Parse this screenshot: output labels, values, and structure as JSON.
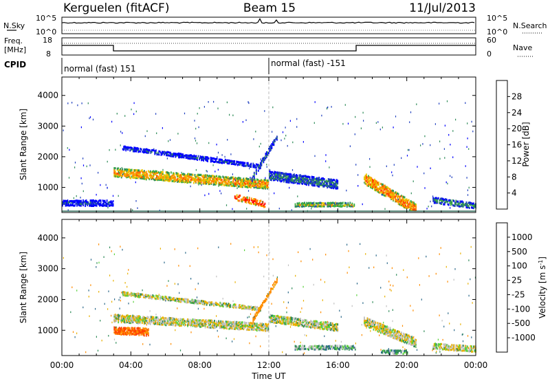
{
  "header": {
    "station": "Kerguelen (fitACF)",
    "beam": "Beam 15",
    "date": "11/Jul/2013"
  },
  "noise_panel": {
    "left_label": "N.Sky",
    "right_label": "N.Search",
    "left_ticks": [
      "10^5",
      "10^0"
    ],
    "right_ticks": [
      "10^5",
      "10^0"
    ]
  },
  "freq_panel": {
    "label_line1": "Freq.",
    "label_line2": "[MHz]",
    "left_ticks": [
      "18",
      "8"
    ],
    "right_label": "Nave",
    "right_ticks": [
      "60",
      "0"
    ]
  },
  "cpid": {
    "label": "CPID",
    "segments": [
      {
        "start_hour": 0,
        "text": "normal (fast) 151"
      },
      {
        "start_hour": 12,
        "text": "normal (fast) -151"
      }
    ]
  },
  "chart_data": [
    {
      "type": "heatmap",
      "panel": "power",
      "ylabel": "Slant Range [km]",
      "yticks": [
        "1000",
        "2000",
        "3000",
        "4000"
      ],
      "ylim": [
        180,
        4600
      ],
      "xlim": [
        0,
        24
      ],
      "colorbar_label": "Power [dB]",
      "colorbar_ticks": [
        "4",
        "8",
        "12",
        "16",
        "20",
        "24",
        "28"
      ],
      "colorbar_colors": [
        "#0000ff",
        "#1f3fbf",
        "#2e8b57",
        "#3cb043",
        "#e8c400",
        "#ff8c00",
        "#ff4500",
        "#ff0000"
      ],
      "echo_bands": [
        {
          "start": 3.0,
          "end": 12.0,
          "range_start": 1500,
          "range_end": 1100,
          "thickness": 300,
          "value_db": 20
        },
        {
          "start": 3.5,
          "end": 11.5,
          "range_start": 2300,
          "range_end": 1700,
          "thickness": 140,
          "value_db": 6
        },
        {
          "start": 10.0,
          "end": 11.8,
          "range_start": 700,
          "range_end": 450,
          "thickness": 200,
          "value_db": 26
        },
        {
          "start": 11.0,
          "end": 12.5,
          "range_start": 1300,
          "range_end": 2700,
          "thickness": 180,
          "value_db": 8
        },
        {
          "start": 12.0,
          "end": 16.0,
          "range_start": 1400,
          "range_end": 1100,
          "thickness": 300,
          "value_db": 8
        },
        {
          "start": 13.5,
          "end": 17.0,
          "range_start": 450,
          "range_end": 450,
          "thickness": 140,
          "value_db": 18
        },
        {
          "start": 17.5,
          "end": 20.5,
          "range_start": 1300,
          "range_end": 300,
          "thickness": 350,
          "value_db": 22
        },
        {
          "start": 21.5,
          "end": 24.0,
          "range_start": 600,
          "range_end": 400,
          "thickness": 200,
          "value_db": 10
        },
        {
          "start": 0.0,
          "end": 3.0,
          "range_start": 500,
          "range_end": 500,
          "thickness": 200,
          "value_db": 4
        }
      ]
    },
    {
      "type": "heatmap",
      "panel": "velocity",
      "ylabel": "Slant Range [km]",
      "yticks": [
        "1000",
        "2000",
        "3000",
        "4000"
      ],
      "ylim": [
        180,
        4600
      ],
      "xlim": [
        0,
        24
      ],
      "xticks": [
        "00:00",
        "04:00",
        "08:00",
        "12:00",
        "16:00",
        "20:00",
        "00:00"
      ],
      "xlabel": "Time UT",
      "colorbar_label": "Velocity [m s",
      "colorbar_ticks": [
        "1000",
        "500",
        "100",
        "25",
        "-25",
        "-100",
        "-500",
        "-1000"
      ],
      "colorbar_colors": [
        "#1f3fbf",
        "#2e6b8b",
        "#2e8b57",
        "#5ad13c",
        "#c0c0c0",
        "#e8b000",
        "#ff8c00",
        "#ff4500",
        "#ff0000"
      ],
      "echo_bands": [
        {
          "start": 3.0,
          "end": 12.0,
          "range_start": 1400,
          "range_end": 1100,
          "thickness": 250,
          "value_ms": 0
        },
        {
          "start": 3.0,
          "end": 5.0,
          "range_start": 1000,
          "range_end": 950,
          "thickness": 250,
          "value_ms": -300
        },
        {
          "start": 3.5,
          "end": 11.5,
          "range_start": 2200,
          "range_end": 1700,
          "thickness": 120,
          "value_ms": 0
        },
        {
          "start": 11.0,
          "end": 12.5,
          "range_start": 1300,
          "range_end": 2700,
          "thickness": 150,
          "value_ms": -150
        },
        {
          "start": 12.0,
          "end": 16.0,
          "range_start": 1400,
          "range_end": 1100,
          "thickness": 250,
          "value_ms": 0
        },
        {
          "start": 13.5,
          "end": 17.0,
          "range_start": 450,
          "range_end": 450,
          "thickness": 140,
          "value_ms": 50
        },
        {
          "start": 17.5,
          "end": 20.5,
          "range_start": 1300,
          "range_end": 600,
          "thickness": 300,
          "value_ms": 0
        },
        {
          "start": 18.5,
          "end": 20.0,
          "range_start": 300,
          "range_end": 300,
          "thickness": 150,
          "value_ms": 80
        },
        {
          "start": 21.5,
          "end": 24.0,
          "range_start": 500,
          "range_end": 400,
          "thickness": 200,
          "value_ms": 0
        }
      ]
    }
  ]
}
